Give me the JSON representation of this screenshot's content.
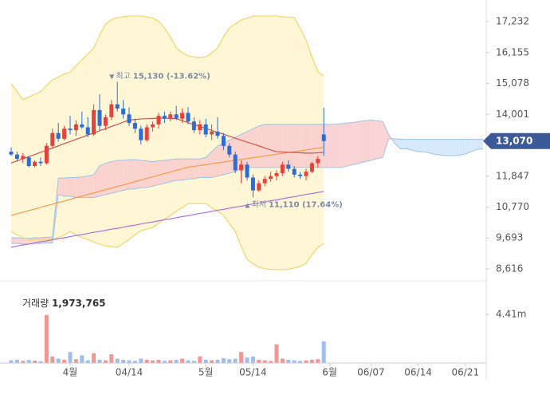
{
  "chart_data": {
    "type": "candlestick",
    "categories": [
      null,
      null,
      null,
      null,
      null,
      null,
      null,
      null,
      null,
      null,
      "4월",
      null,
      null,
      null,
      null,
      null,
      null,
      null,
      null,
      null,
      "04/14",
      null,
      null,
      null,
      null,
      null,
      null,
      null,
      null,
      null,
      null,
      null,
      null,
      "5월",
      null,
      null,
      null,
      null,
      null,
      null,
      null,
      "05/14",
      null,
      null,
      null,
      null,
      null,
      null,
      null,
      null,
      null,
      null,
      null,
      null,
      "6월",
      null,
      null,
      null,
      null,
      null,
      null,
      "06/07",
      null,
      null,
      null,
      null,
      null,
      null,
      null,
      "06/14",
      null,
      null,
      null,
      null,
      null,
      null,
      null,
      "06/21",
      null,
      null,
      null
    ],
    "up_color": "#e8403a",
    "down_color": "#2c6cd6",
    "candles": [
      [
        12700,
        12850,
        12550,
        12600
      ],
      [
        12600,
        12700,
        12350,
        12450
      ],
      [
        12450,
        12650,
        12300,
        12550
      ],
      [
        12500,
        12550,
        12150,
        12200
      ],
      [
        12200,
        12400,
        12150,
        12350
      ],
      [
        12350,
        12500,
        12200,
        12300
      ],
      [
        12300,
        13000,
        12250,
        12900
      ],
      [
        12900,
        13500,
        12800,
        13350
      ],
      [
        13350,
        13700,
        13050,
        13150
      ],
      [
        13150,
        13600,
        13100,
        13500
      ],
      [
        13500,
        13950,
        13300,
        13450
      ],
      [
        13450,
        13800,
        13250,
        13650
      ],
      [
        13650,
        14100,
        13500,
        13550
      ],
      [
        13550,
        13900,
        13200,
        13300
      ],
      [
        13300,
        14350,
        13250,
        14150
      ],
      [
        14150,
        14700,
        13450,
        13600
      ],
      [
        13600,
        14000,
        13450,
        13900
      ],
      [
        13900,
        14500,
        13800,
        14350
      ],
      [
        14350,
        15130,
        14100,
        14200
      ],
      [
        14200,
        14500,
        13850,
        14000
      ],
      [
        14000,
        14250,
        13600,
        13700
      ],
      [
        13700,
        13850,
        13350,
        13500
      ],
      [
        13500,
        13600,
        12950,
        13100
      ],
      [
        13100,
        13650,
        13050,
        13550
      ],
      [
        13550,
        13750,
        13400,
        13650
      ],
      [
        13650,
        14050,
        13500,
        13950
      ],
      [
        13950,
        14100,
        13700,
        13850
      ],
      [
        13850,
        14100,
        13750,
        14000
      ],
      [
        14000,
        14300,
        13800,
        13850
      ],
      [
        13850,
        14200,
        13700,
        14050
      ],
      [
        14050,
        14250,
        13650,
        13750
      ],
      [
        13750,
        13900,
        13350,
        13450
      ],
      [
        13450,
        13800,
        13300,
        13650
      ],
      [
        13650,
        13850,
        13200,
        13300
      ],
      [
        13300,
        13650,
        13100,
        13400
      ],
      [
        13400,
        13900,
        13150,
        13250
      ],
      [
        13250,
        13350,
        12750,
        12900
      ],
      [
        12900,
        13000,
        12500,
        12600
      ],
      [
        12600,
        12700,
        11950,
        12050
      ],
      [
        12050,
        12400,
        11600,
        12250
      ],
      [
        12250,
        12350,
        11700,
        11800
      ],
      [
        11800,
        11900,
        11110,
        11350
      ],
      [
        11350,
        11700,
        11300,
        11600
      ],
      [
        11600,
        11850,
        11500,
        11750
      ],
      [
        11750,
        12000,
        11650,
        11850
      ],
      [
        11850,
        12050,
        11700,
        11950
      ],
      [
        11950,
        12350,
        11850,
        12250
      ],
      [
        12250,
        12400,
        12000,
        12100
      ],
      [
        12100,
        12200,
        11800,
        11900
      ],
      [
        11900,
        12000,
        11750,
        11850
      ],
      [
        11850,
        12100,
        11700,
        12000
      ],
      [
        12000,
        12350,
        11950,
        12300
      ],
      [
        12300,
        12550,
        12150,
        12450
      ],
      [
        13300,
        14230,
        12550,
        13070
      ]
    ],
    "bollinger": {
      "color": "#f3d46a",
      "fill": "#fff6d6",
      "upper": [
        15060,
        14800,
        14510,
        14600,
        14700,
        14790,
        15000,
        15200,
        15300,
        15400,
        15480,
        15700,
        15900,
        16100,
        16310,
        16750,
        17150,
        17300,
        17370,
        17400,
        17430,
        17430,
        17430,
        17400,
        17350,
        17250,
        17000,
        16700,
        16310,
        16150,
        16040,
        16000,
        15980,
        16000,
        16150,
        16310,
        16700,
        17010,
        17150,
        17290,
        17350,
        17430,
        17430,
        17430,
        17430,
        17430,
        17400,
        17380,
        17370,
        17000,
        16590,
        16000,
        15480,
        15340
      ],
      "lower": [
        9920,
        9800,
        9700,
        9640,
        9640,
        9640,
        9640,
        9640,
        9700,
        9800,
        9920,
        9800,
        9700,
        9640,
        9550,
        9480,
        9420,
        9390,
        9370,
        9500,
        9640,
        9800,
        9950,
        10000,
        10060,
        10200,
        10350,
        10480,
        10620,
        10750,
        10890,
        10890,
        10890,
        10890,
        10750,
        10620,
        10480,
        10200,
        9920,
        9400,
        8950,
        8800,
        8670,
        8620,
        8600,
        8590,
        8590,
        8600,
        8650,
        8700,
        8810,
        9100,
        9370,
        9500
      ]
    },
    "cloud": {
      "up_color": "#f9cccc",
      "down_color": "#cfe6fb",
      "line_color": "#9cc3e6",
      "span_a": [
        9700,
        9700,
        9680,
        9680,
        9700,
        9700,
        9720,
        9720,
        11780,
        11780,
        11800,
        11800,
        11820,
        11850,
        11900,
        12200,
        12300,
        12350,
        12400,
        12400,
        12420,
        12420,
        12400,
        12380,
        12350,
        12380,
        12400,
        12420,
        12450,
        12450,
        12450,
        12450,
        12450,
        12500,
        12700,
        12900,
        13000,
        13100,
        13200,
        13300,
        13400,
        13500,
        13600,
        13650,
        13650,
        13650,
        13650,
        13650,
        13650,
        13650,
        13650,
        13650,
        13650,
        13650,
        13650,
        13650,
        13680,
        13700,
        13720,
        13750,
        13780,
        13800,
        13780,
        13750,
        13300,
        13000,
        12800,
        12800,
        12750,
        12700,
        12700,
        12650,
        12600,
        12580,
        12560,
        12560,
        12580,
        12620,
        12700,
        12780,
        12800
      ],
      "span_b": [
        9500,
        9500,
        9480,
        9480,
        9500,
        9500,
        9520,
        9520,
        11200,
        11150,
        11150,
        11100,
        11100,
        11100,
        11100,
        11150,
        11200,
        11250,
        11300,
        11350,
        11400,
        11400,
        11450,
        11450,
        11500,
        11550,
        11600,
        11650,
        11700,
        11700,
        11750,
        11750,
        11800,
        11800,
        11800,
        11850,
        11900,
        11950,
        12000,
        12100,
        12150,
        12150,
        12150,
        12150,
        12150,
        12150,
        12150,
        12150,
        12150,
        12150,
        12150,
        12150,
        12150,
        12150,
        12150,
        12150,
        12150,
        12200,
        12250,
        12300,
        12350,
        12400,
        12450,
        12500,
        13150,
        13150,
        13130,
        13130,
        13130,
        13130,
        13130,
        13130,
        13130,
        13130,
        13130,
        13130,
        13130,
        13130,
        13130,
        13130,
        13130
      ]
    },
    "lines": [
      {
        "color": "#b06fd8",
        "values": [
          9370,
          9410,
          9450,
          9480,
          9520,
          9560,
          9590,
          9630,
          9670,
          9700,
          9740,
          9780,
          9810,
          9850,
          9890,
          9920,
          9960,
          10000,
          10030,
          10070,
          10110,
          10140,
          10180,
          10220,
          10250,
          10290,
          10330,
          10360,
          10400,
          10440,
          10470,
          10510,
          10550,
          10580,
          10620,
          10660,
          10690,
          10730,
          10770,
          10800,
          10840,
          10880,
          10910,
          10950,
          10990,
          11020,
          11060,
          11100,
          11130,
          11170,
          11210,
          11240,
          11280,
          11310
        ]
      },
      {
        "color": "#f39b4b",
        "values": [
          10480,
          10540,
          10590,
          10650,
          10700,
          10760,
          10820,
          10870,
          10930,
          10980,
          11040,
          11100,
          11150,
          11210,
          11260,
          11320,
          11380,
          11430,
          11490,
          11540,
          11600,
          11660,
          11710,
          11770,
          11820,
          11880,
          11940,
          11990,
          12050,
          12100,
          12160,
          12190,
          12220,
          12250,
          12280,
          12310,
          12340,
          12370,
          12400,
          12430,
          12460,
          12490,
          12520,
          12550,
          12580,
          12610,
          12640,
          12670,
          12700,
          12730,
          12760,
          12790,
          12820,
          12850
        ]
      },
      {
        "color": "#c8574f",
        "values": [
          12300,
          12380,
          12450,
          12530,
          12600,
          12680,
          12750,
          12830,
          12900,
          12980,
          13050,
          13130,
          13200,
          13280,
          13350,
          13430,
          13500,
          13580,
          13650,
          13730,
          13800,
          13820,
          13840,
          13850,
          13860,
          13870,
          13870,
          13860,
          13850,
          13780,
          13710,
          13640,
          13580,
          13510,
          13440,
          13370,
          13310,
          13240,
          13170,
          13100,
          13030,
          12970,
          12900,
          12830,
          12760,
          12700,
          12690,
          12680,
          12670,
          12660,
          12650,
          12650,
          12660,
          12680
        ]
      }
    ],
    "ylim": [
      8393,
      17706
    ],
    "yticks": [
      {
        "value": 8616,
        "label": "8,616"
      },
      {
        "value": 9693,
        "label": "9,693"
      },
      {
        "value": 10770,
        "label": "10,770"
      },
      {
        "value": 11847,
        "label": "11,847"
      },
      {
        "value": 14001,
        "label": "14,001"
      },
      {
        "value": 15078,
        "label": "15,078"
      },
      {
        "value": 16155,
        "label": "16,155"
      },
      {
        "value": 17232,
        "label": "17,232"
      }
    ],
    "current_price": {
      "value": 13070,
      "label": "13,070",
      "color": "#3d5a98"
    },
    "annotations": [
      {
        "marker": "▼",
        "label": "최고",
        "value_label": "15,130 (-13.62%)",
        "value": 15130,
        "index": 18
      },
      {
        "marker": "▲",
        "label": "최저",
        "value_label": "11,110 (17.64%)",
        "value": 11110,
        "index": 41
      }
    ],
    "volume": {
      "title": "거래량",
      "current_label": {
        "value": 1973765,
        "label": "1,973,765"
      },
      "ylim": [
        0,
        6720000
      ],
      "yticks": [
        {
          "value": 4410000,
          "label": "4.41m"
        }
      ],
      "values": [
        250000,
        300000,
        200000,
        280000,
        220000,
        180000,
        4350000,
        600000,
        400000,
        300000,
        1000000,
        350000,
        700000,
        250000,
        900000,
        300000,
        250000,
        800000,
        400000,
        300000,
        250000,
        200000,
        400000,
        300000,
        250000,
        300000,
        200000,
        250000,
        300000,
        400000,
        250000,
        200000,
        600000,
        300000,
        250000,
        300000,
        450000,
        350000,
        400000,
        1000000,
        500000,
        600000,
        300000,
        250000,
        200000,
        1700000,
        400000,
        300000,
        250000,
        200000,
        250000,
        300000,
        350000,
        1973765
      ]
    }
  }
}
